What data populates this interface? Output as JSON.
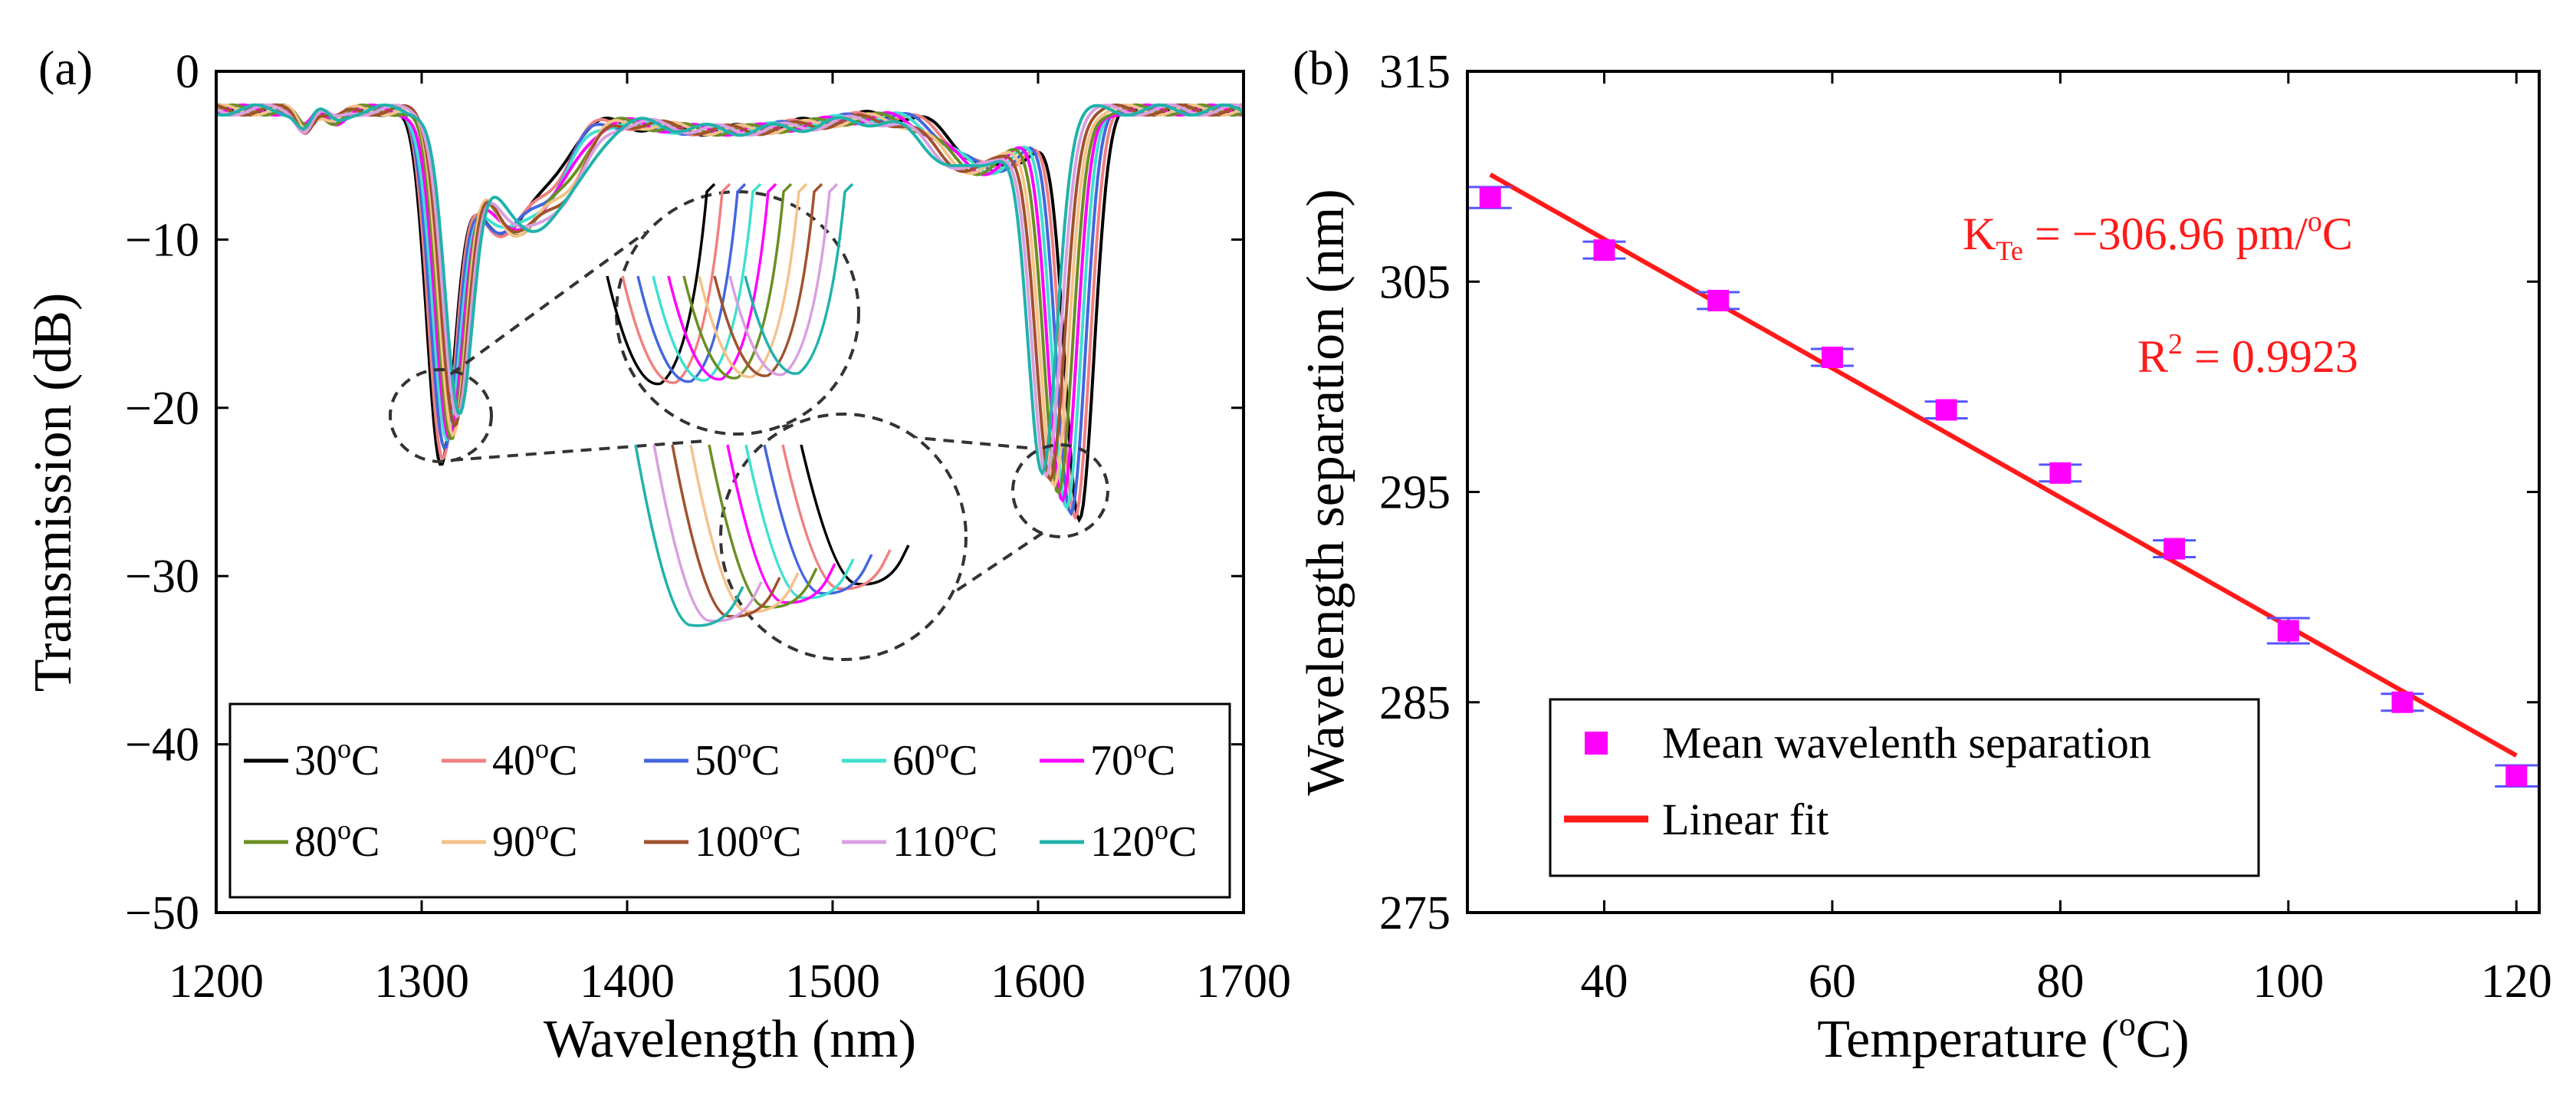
{
  "chart_data": [
    {
      "type": "line",
      "panel_label": "(a)",
      "xlabel": "Wavelength (nm)",
      "ylabel": "Transmission (dB)",
      "xlim": [
        1200,
        1700
      ],
      "ylim": [
        -50,
        0
      ],
      "xticks": [
        1200,
        1300,
        1400,
        1500,
        1600,
        1700
      ],
      "yticks": [
        0,
        -10,
        -20,
        -30,
        -40,
        -50
      ],
      "xtick_labels": [
        "1200",
        "1300",
        "1400",
        "1500",
        "1600",
        "1700"
      ],
      "ytick_labels": [
        "0",
        "-10",
        "-20",
        "-30",
        "-40",
        "-50"
      ],
      "legend_position": "bottom",
      "series": [
        {
          "name": "30",
          "unit_sup": "o",
          "unit": "C",
          "color": "#000000",
          "dip1_nm": 1309,
          "dip1_db": -21.5,
          "dip2_nm": 1620,
          "dip2_db": -26.5
        },
        {
          "name": "40",
          "unit_sup": "o",
          "unit": "C",
          "color": "#f08080",
          "dip1_nm": 1310,
          "dip1_db": -21.3,
          "dip2_nm": 1618,
          "dip2_db": -26.2
        },
        {
          "name": "50",
          "unit_sup": "o",
          "unit": "C",
          "color": "#4466dd",
          "dip1_nm": 1311,
          "dip1_db": -21.1,
          "dip2_nm": 1616,
          "dip2_db": -25.9
        },
        {
          "name": "60",
          "unit_sup": "o",
          "unit": "C",
          "color": "#40e0d0",
          "dip1_nm": 1312,
          "dip1_db": -20.9,
          "dip2_nm": 1614,
          "dip2_db": -25.6
        },
        {
          "name": "70",
          "unit_sup": "o",
          "unit": "C",
          "color": "#ff00ff",
          "dip1_nm": 1313,
          "dip1_db": -20.7,
          "dip2_nm": 1612,
          "dip2_db": -25.3
        },
        {
          "name": "80",
          "unit_sup": "o",
          "unit": "C",
          "color": "#6b8e23",
          "dip1_nm": 1314,
          "dip1_db": -20.5,
          "dip2_nm": 1610,
          "dip2_db": -25.0
        },
        {
          "name": "90",
          "unit_sup": "o",
          "unit": "C",
          "color": "#f5c28a",
          "dip1_nm": 1315,
          "dip1_db": -20.3,
          "dip2_nm": 1608,
          "dip2_db": -24.7
        },
        {
          "name": "100",
          "unit_sup": "o",
          "unit": "C",
          "color": "#a0522d",
          "dip1_nm": 1316,
          "dip1_db": -20.1,
          "dip2_nm": 1606,
          "dip2_db": -24.4
        },
        {
          "name": "110",
          "unit_sup": "o",
          "unit": "C",
          "color": "#d8a0e0",
          "dip1_nm": 1317,
          "dip1_db": -19.9,
          "dip2_nm": 1604,
          "dip2_db": -24.1
        },
        {
          "name": "120",
          "unit_sup": "o",
          "unit": "C",
          "color": "#20b2aa",
          "dip1_nm": 1318,
          "dip1_db": -19.7,
          "dip2_nm": 1602,
          "dip2_db": -23.8
        }
      ]
    },
    {
      "type": "scatter",
      "panel_label": "(b)",
      "xlabel_main": "Temperature (",
      "xlabel_sup": "o",
      "xlabel_end": "C)",
      "ylabel": "Wavelength separation (nm)",
      "xlim": [
        28,
        122
      ],
      "ylim": [
        275,
        315
      ],
      "xticks": [
        40,
        60,
        80,
        100,
        120
      ],
      "yticks": [
        275,
        285,
        295,
        305,
        315
      ],
      "xtick_labels": [
        "40",
        "60",
        "80",
        "100",
        "120"
      ],
      "ytick_labels": [
        "275",
        "285",
        "295",
        "305",
        "315"
      ],
      "x": [
        30,
        40,
        50,
        60,
        70,
        80,
        90,
        100,
        110,
        120
      ],
      "y": [
        309.0,
        306.5,
        304.1,
        301.4,
        298.9,
        295.9,
        292.3,
        288.4,
        285.0,
        281.5
      ],
      "y_err": [
        0.5,
        0.4,
        0.4,
        0.4,
        0.4,
        0.4,
        0.4,
        0.6,
        0.4,
        0.5
      ],
      "fit": {
        "slope": -0.30696,
        "intercept": 319.3,
        "x_range": [
          30,
          120
        ]
      },
      "marker_color": "#ff00ff",
      "errorbar_color": "#5555ff",
      "fit_color": "#ff1a1a",
      "legend_position": "bottom-left",
      "legend": [
        {
          "label": "Mean wavelenth separation",
          "kind": "marker"
        },
        {
          "label": "Linear fit",
          "kind": "line"
        }
      ],
      "annotations": {
        "k_main": "K",
        "k_sub": "Te",
        "k_eq": " = −306.96 pm/",
        "k_sup": "o",
        "k_end": "C",
        "r_main": "R",
        "r_sup": "2",
        "r_eq": " = 0.9923"
      }
    }
  ]
}
